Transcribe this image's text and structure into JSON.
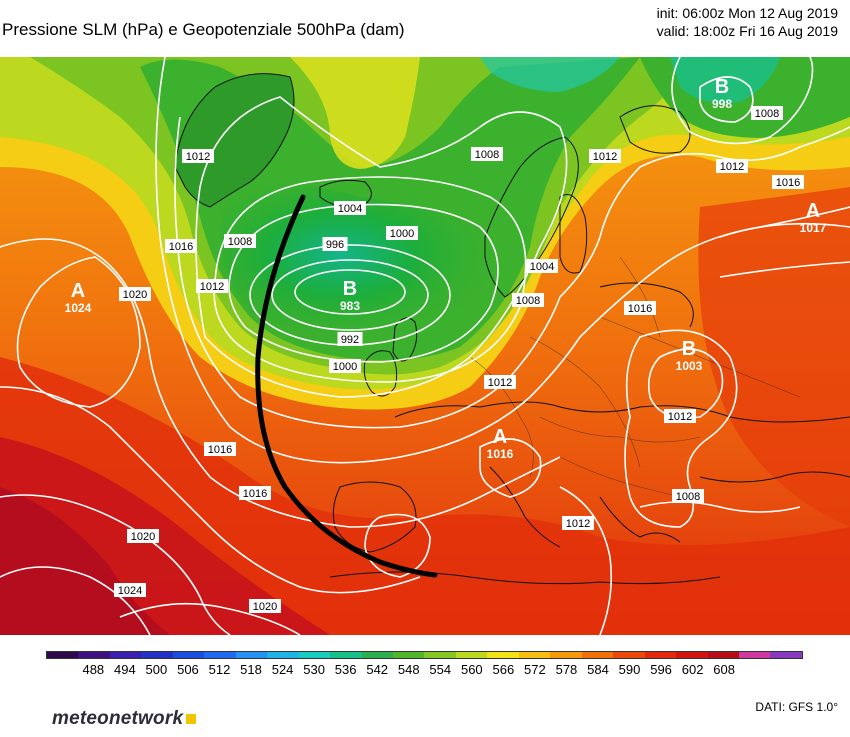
{
  "header": {
    "title": "Pressione SLM (hPa) e Geopotenziale 500hPa (dam)",
    "init": "init: 06:00z Mon 12 Aug 2019",
    "valid": "valid: 18:00z Fri 16 Aug 2019"
  },
  "map": {
    "centers": [
      {
        "letter": "A",
        "value": "1024"
      },
      {
        "letter": "B",
        "value": "983"
      },
      {
        "letter": "B",
        "value": "998"
      },
      {
        "letter": "A",
        "value": "1017"
      },
      {
        "letter": "B",
        "value": "1003"
      },
      {
        "letter": "A",
        "value": "1016"
      }
    ],
    "isobar_labels": [
      "1012",
      "1008",
      "1016",
      "1020",
      "1004",
      "1000",
      "996",
      "1008",
      "992",
      "1000",
      "1012",
      "1008",
      "1004",
      "1012",
      "1016",
      "1012",
      "1008",
      "1012",
      "1016",
      "1016",
      "1020",
      "1024",
      "1020",
      "1016",
      "1012",
      "1008",
      "1012"
    ],
    "front_line": "black curved line"
  },
  "colorbar": {
    "ticks": [
      "488",
      "494",
      "500",
      "506",
      "512",
      "518",
      "524",
      "530",
      "536",
      "542",
      "548",
      "554",
      "560",
      "566",
      "572",
      "578",
      "584",
      "590",
      "596",
      "602",
      "608"
    ],
    "colors": [
      "#2e0a4a",
      "#3f1180",
      "#3a1fb0",
      "#2232c8",
      "#1a4ee0",
      "#1e6af0",
      "#2492f5",
      "#1fb4e8",
      "#17cdc0",
      "#18c08a",
      "#2fb050",
      "#52b52c",
      "#86c823",
      "#bcd91f",
      "#f2e316",
      "#f7c010",
      "#f69a0c",
      "#f2700a",
      "#ec4a0a",
      "#e32a0c",
      "#d11410",
      "#b80c16",
      "#d03aa0",
      "#8a3ac0"
    ]
  },
  "footer": {
    "logo": "meteonetwork",
    "source": "DATI:  GFS  1.0°"
  }
}
